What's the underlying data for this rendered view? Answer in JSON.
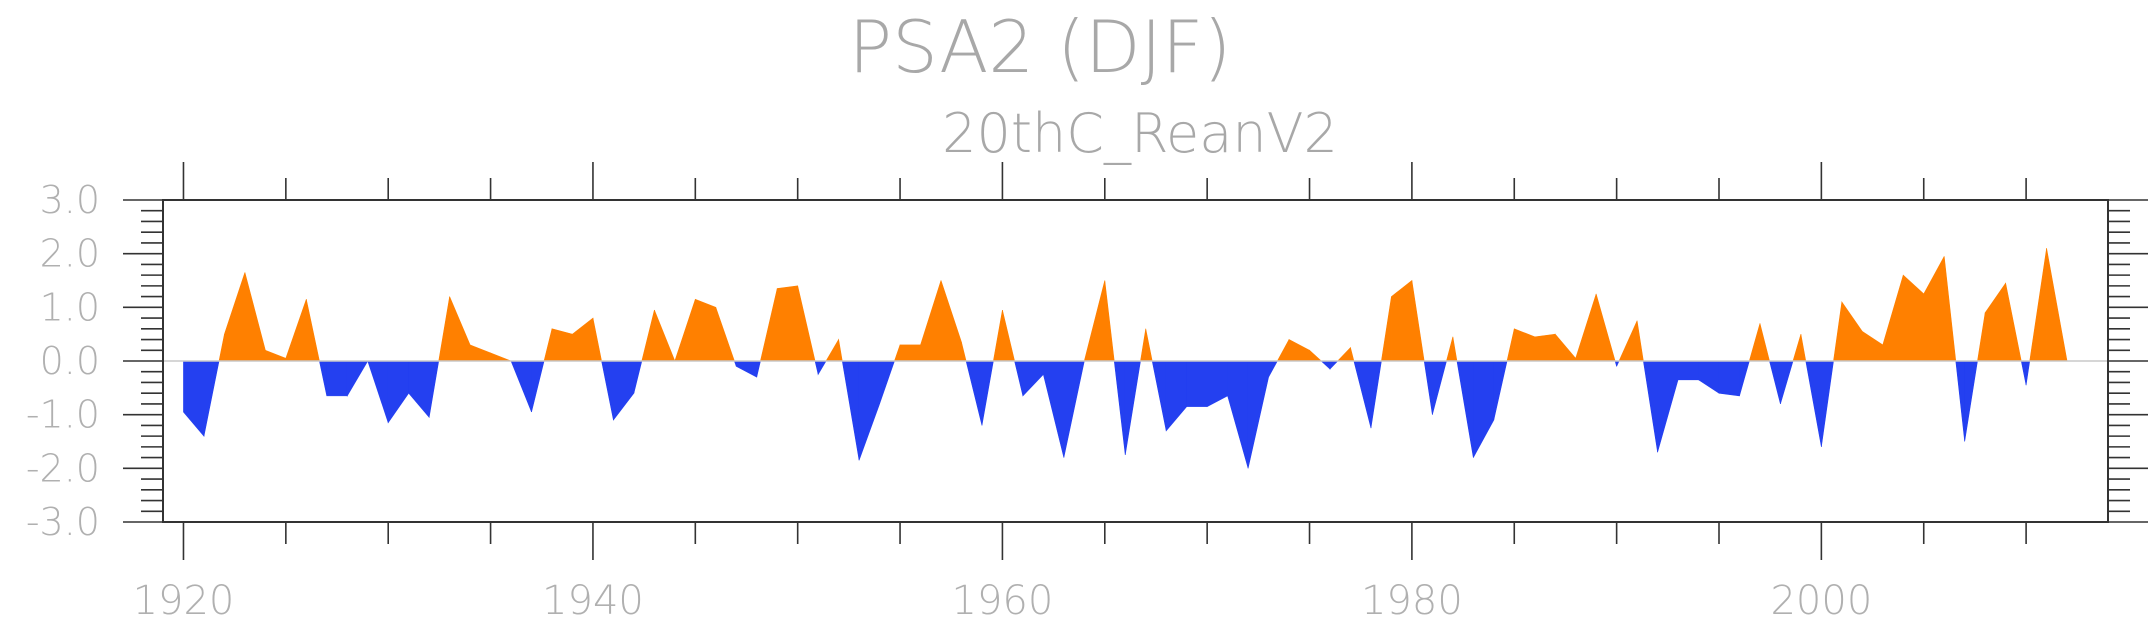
{
  "chart_data": {
    "type": "area",
    "title": "PSA2 (DJF)",
    "subtitle": "20thC_ReanV2",
    "xlabel": "",
    "ylabel": "",
    "xlim": [
      1919,
      2014
    ],
    "ylim": [
      -3.0,
      3.0
    ],
    "x_ticks": [
      1920,
      1940,
      1960,
      1980,
      2000
    ],
    "y_ticks": [
      "3.0",
      "2.0",
      "1.0",
      "0.0",
      "-1.0",
      "-2.0",
      "-3.0"
    ],
    "grid": false,
    "positive_color": "#ff8000",
    "negative_color": "#2440f0",
    "x": [
      1920,
      1921,
      1922,
      1923,
      1924,
      1925,
      1926,
      1927,
      1928,
      1929,
      1930,
      1931,
      1932,
      1933,
      1934,
      1935,
      1936,
      1937,
      1938,
      1939,
      1940,
      1941,
      1942,
      1943,
      1944,
      1945,
      1946,
      1947,
      1948,
      1949,
      1950,
      1951,
      1952,
      1953,
      1954,
      1955,
      1956,
      1957,
      1958,
      1959,
      1960,
      1961,
      1962,
      1963,
      1964,
      1965,
      1966,
      1967,
      1968,
      1969,
      1970,
      1971,
      1972,
      1973,
      1974,
      1975,
      1976,
      1977,
      1978,
      1979,
      1980,
      1981,
      1982,
      1983,
      1984,
      1985,
      1986,
      1987,
      1988,
      1989,
      1990,
      1991,
      1992,
      1993,
      1994,
      1995,
      1996,
      1997,
      1998,
      1999,
      2000,
      2001,
      2002,
      2003,
      2004,
      2005,
      2006,
      2007,
      2008,
      2009,
      2010,
      2011,
      2012
    ],
    "values": [
      -0.95,
      -1.4,
      0.5,
      1.65,
      0.2,
      0.05,
      1.15,
      -0.65,
      -0.65,
      0.0,
      -1.15,
      -0.6,
      -1.05,
      1.2,
      0.3,
      0.15,
      0.0,
      -0.95,
      0.6,
      0.5,
      0.8,
      -1.1,
      -0.6,
      0.95,
      0.0,
      1.15,
      1.0,
      -0.1,
      -0.3,
      1.35,
      1.4,
      -0.25,
      0.4,
      -1.85,
      -0.8,
      0.3,
      0.3,
      1.5,
      0.35,
      -1.2,
      0.95,
      -0.65,
      -0.25,
      -1.8,
      0.0,
      1.5,
      -1.75,
      0.6,
      -1.3,
      -0.85,
      -0.85,
      -0.65,
      -2.0,
      -0.3,
      0.4,
      0.2,
      -0.15,
      0.25,
      -1.25,
      1.2,
      1.5,
      -1.0,
      0.45,
      -1.8,
      -1.1,
      0.6,
      0.45,
      0.5,
      0.05,
      1.25,
      -0.1,
      0.75,
      -1.7,
      -0.35,
      -0.35,
      -0.6,
      -0.65,
      0.7,
      -0.8,
      0.5,
      -1.6,
      1.1,
      0.55,
      0.3,
      1.6,
      1.25,
      1.95,
      -1.5,
      0.9,
      1.45,
      -0.45,
      2.1,
      0.0
    ]
  }
}
